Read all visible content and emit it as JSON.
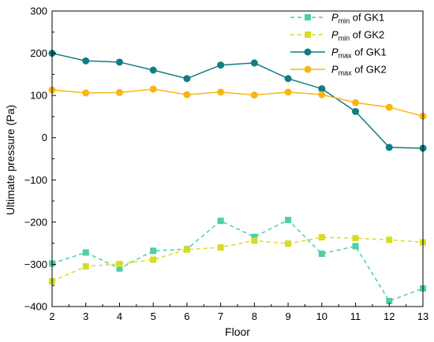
{
  "chart_data": {
    "type": "line",
    "xlabel": "Floor",
    "ylabel": "Ultimate pressure (Pa)",
    "x": [
      2,
      3,
      4,
      5,
      6,
      7,
      8,
      9,
      10,
      11,
      12,
      13
    ],
    "xlim": [
      2,
      13
    ],
    "ylim": [
      -400,
      300
    ],
    "yticks": [
      -400,
      -300,
      -200,
      -100,
      0,
      100,
      200,
      300
    ],
    "legend_position": "top-right",
    "grid": false,
    "series": [
      {
        "name": "Pmin of GK1",
        "label_main": "P",
        "label_sub": "min",
        "label_rest": " of GK1",
        "color": "#4ecda9",
        "line_style": "dashed",
        "marker": "square",
        "values": [
          -298,
          -272,
          -310,
          -268,
          -264,
          -197,
          -235,
          -195,
          -275,
          -257,
          -387,
          -357
        ]
      },
      {
        "name": "Pmin of GK2",
        "label_main": "P",
        "label_sub": "min",
        "label_rest": " of GK2",
        "color": "#d6dc25",
        "line_style": "dashed",
        "marker": "square",
        "values": [
          -340,
          -305,
          -299,
          -289,
          -265,
          -260,
          -244,
          -251,
          -236,
          -238,
          -242,
          -248
        ]
      },
      {
        "name": "Pmax of GK1",
        "label_main": "P",
        "label_sub": "max",
        "label_rest": " of GK1",
        "color": "#117d82",
        "line_style": "solid",
        "marker": "circle",
        "values": [
          200,
          182,
          179,
          160,
          140,
          172,
          177,
          140,
          116,
          62,
          -23,
          -25
        ]
      },
      {
        "name": "Pmax of GK2",
        "label_main": "P",
        "label_sub": "max",
        "label_rest": " of GK2",
        "color": "#f9b514",
        "line_style": "solid",
        "marker": "circle",
        "values": [
          113,
          106,
          107,
          115,
          102,
          108,
          101,
          108,
          102,
          83,
          72,
          51
        ]
      }
    ]
  }
}
